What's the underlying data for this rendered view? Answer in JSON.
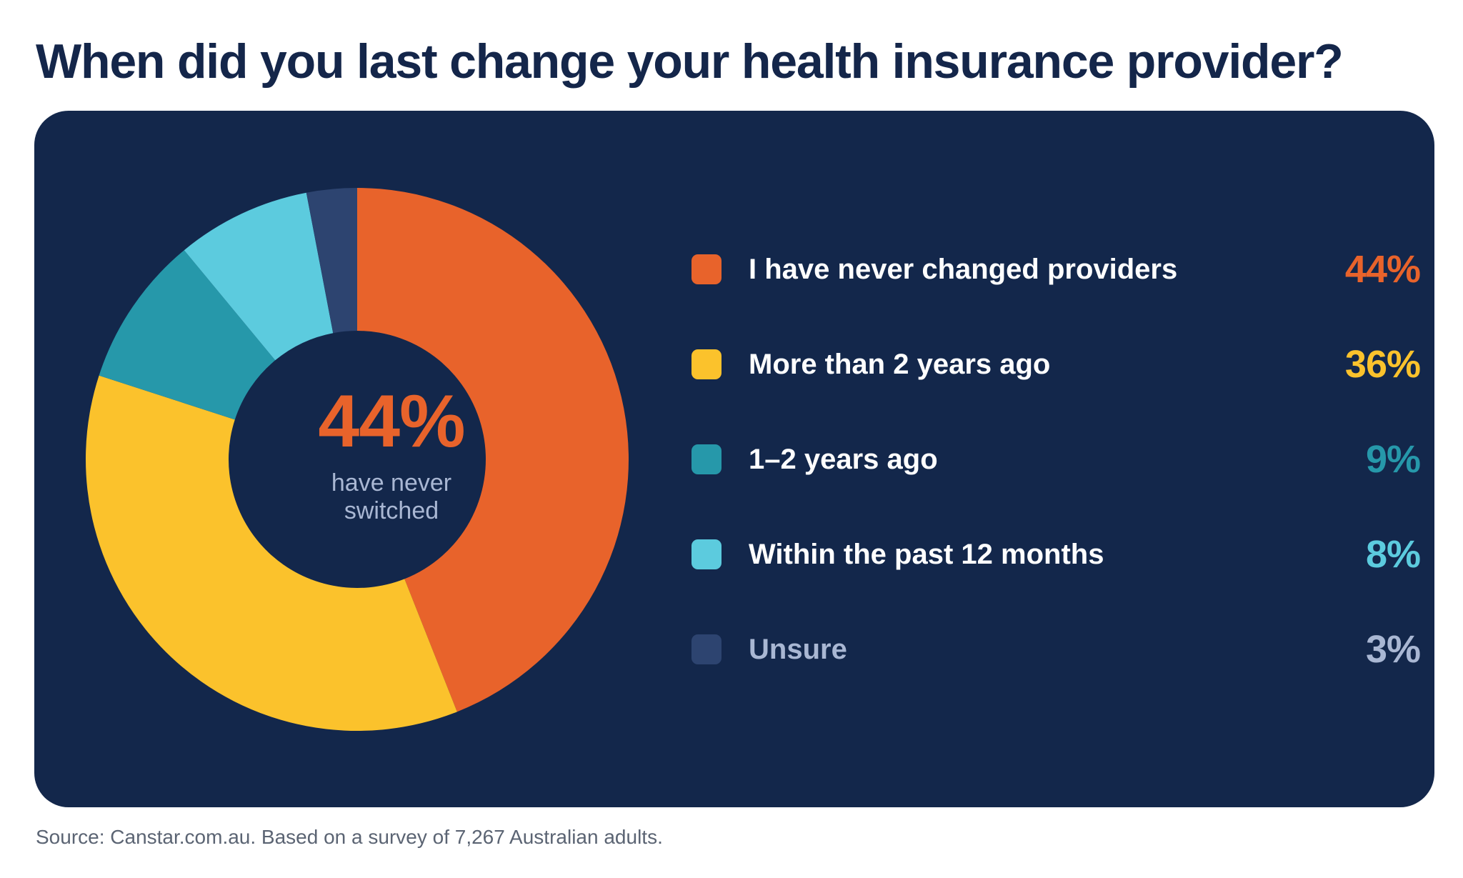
{
  "title": "When did you last change your health insurance provider?",
  "source": "Source: Canstar.com.au. Based on a survey of 7,267 Australian adults.",
  "center": {
    "value": "44%",
    "caption_line1": "have never",
    "caption_line2": "switched"
  },
  "legend": [
    {
      "label": "I have never changed providers",
      "pct": "44%",
      "color": "#e8632b",
      "label_color": "#ffffff",
      "pct_color": "#e8632b"
    },
    {
      "label": "More than 2 years ago",
      "pct": "36%",
      "color": "#fbc22c",
      "label_color": "#ffffff",
      "pct_color": "#fbc22c"
    },
    {
      "label": "1–2 years ago",
      "pct": "9%",
      "color": "#2698aa",
      "label_color": "#ffffff",
      "pct_color": "#2698aa"
    },
    {
      "label": "Within the past 12 months",
      "pct": "8%",
      "color": "#5ccbde",
      "label_color": "#ffffff",
      "pct_color": "#5ccbde"
    },
    {
      "label": "Unsure",
      "pct": "3%",
      "color": "#2d4470",
      "label_color": "#a9b7d3",
      "pct_color": "#a9b7d3"
    }
  ],
  "chart_data": {
    "type": "pie",
    "variant": "donut",
    "title": "When did you last change your health insurance provider?",
    "categories": [
      "I have never changed providers",
      "More than 2 years ago",
      "1–2 years ago",
      "Within the past 12 months",
      "Unsure"
    ],
    "values": [
      44,
      36,
      9,
      8,
      3
    ],
    "unit": "%",
    "colors": [
      "#e8632b",
      "#fbc22c",
      "#2698aa",
      "#5ccbde",
      "#2d4470"
    ],
    "legend_position": "right"
  }
}
